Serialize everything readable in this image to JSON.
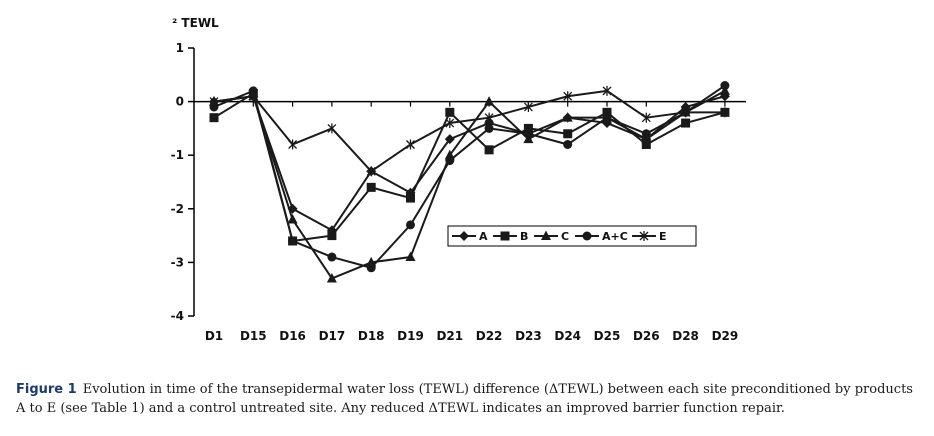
{
  "chart_data": {
    "type": "line",
    "ylabel": "² TEWL",
    "categories": [
      "D1",
      "D15",
      "D16",
      "D17",
      "D18",
      "D19",
      "D21",
      "D22",
      "D23",
      "D24",
      "D25",
      "D26",
      "D28",
      "D29"
    ],
    "yticks": [
      "1",
      "0",
      "-1",
      "-2",
      "-3",
      "-4"
    ],
    "ytick_values": [
      1,
      0,
      -1,
      -2,
      -3,
      -4
    ],
    "ylim": [
      -4,
      1
    ],
    "legend_position": "center-right",
    "series": [
      {
        "name": "A",
        "marker": "diamond",
        "values": [
          0,
          0.1,
          -2.0,
          -2.4,
          -1.3,
          -1.7,
          -0.7,
          -0.4,
          -0.6,
          -0.3,
          -0.4,
          -0.7,
          -0.1,
          0.1
        ]
      },
      {
        "name": "B",
        "marker": "square",
        "values": [
          -0.3,
          0.15,
          -2.6,
          -2.5,
          -1.6,
          -1.8,
          -0.2,
          -0.9,
          -0.5,
          -0.6,
          -0.2,
          -0.8,
          -0.4,
          -0.2
        ]
      },
      {
        "name": "C",
        "marker": "triangle",
        "values": [
          0,
          0.1,
          -2.2,
          -3.3,
          -3.0,
          -2.9,
          -1.0,
          0.0,
          -0.7,
          -0.3,
          -0.3,
          -0.7,
          -0.2,
          0.2
        ]
      },
      {
        "name": "A+C",
        "marker": "circle",
        "values": [
          -0.1,
          0.2,
          -2.6,
          -2.9,
          -3.1,
          -2.3,
          -1.1,
          -0.5,
          -0.6,
          -0.8,
          -0.3,
          -0.6,
          -0.2,
          0.3
        ]
      },
      {
        "name": "E",
        "marker": "star",
        "values": [
          0,
          0.1,
          -0.8,
          -0.5,
          -1.3,
          -0.8,
          -0.4,
          -0.3,
          -0.1,
          0.1,
          0.2,
          -0.3,
          -0.2,
          -0.2
        ]
      }
    ]
  },
  "caption": {
    "label": "Figure 1",
    "text": "Evolution in time of the transepidermal water loss (TEWL) difference (ΔTEWL) between each site preconditioned by products A to E (see Table 1) and a control untreated site. Any reduced ΔTEWL indicates an improved barrier function repair."
  }
}
